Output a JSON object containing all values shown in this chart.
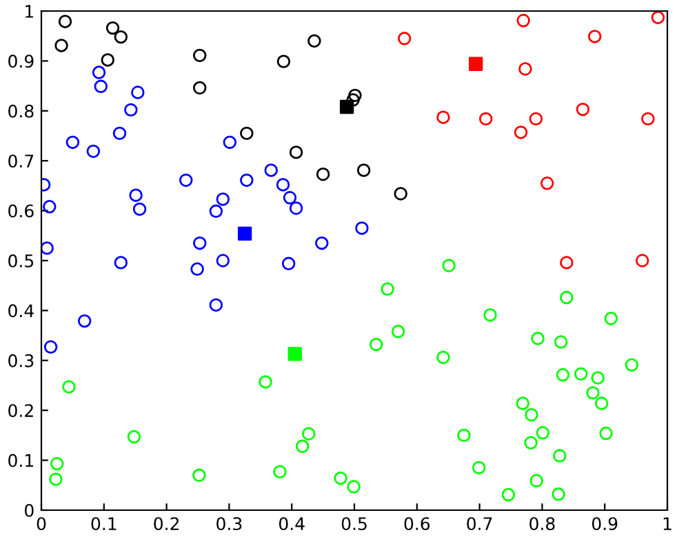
{
  "chart_data": {
    "type": "scatter",
    "xlim": [
      0,
      1
    ],
    "ylim": [
      0,
      1
    ],
    "xticks": [
      0,
      0.1,
      0.2,
      0.3,
      0.4,
      0.5,
      0.6,
      0.7,
      0.8,
      0.9,
      1
    ],
    "yticks": [
      0,
      0.1,
      0.2,
      0.3,
      0.4,
      0.5,
      0.6,
      0.7,
      0.8,
      0.9,
      1
    ],
    "grid": false,
    "series": [
      {
        "color": "#0000ff",
        "marker": "circle",
        "x": [
          0.092,
          0.095,
          0.154,
          0.143,
          0.125,
          0.05,
          0.083,
          0.004,
          0.013,
          0.009,
          0.151,
          0.157,
          0.127,
          0.231,
          0.301,
          0.328,
          0.29,
          0.279,
          0.253,
          0.249,
          0.29,
          0.367,
          0.386,
          0.397,
          0.407,
          0.395,
          0.448,
          0.512,
          0.279,
          0.069,
          0.015
        ],
        "values": [
          0.877,
          0.849,
          0.837,
          0.802,
          0.755,
          0.737,
          0.719,
          0.652,
          0.608,
          0.525,
          0.631,
          0.603,
          0.496,
          0.661,
          0.737,
          0.661,
          0.623,
          0.599,
          0.535,
          0.483,
          0.5,
          0.681,
          0.652,
          0.626,
          0.605,
          0.494,
          0.535,
          0.565,
          0.411,
          0.379,
          0.327
        ]
      },
      {
        "color": "#000000",
        "marker": "circle",
        "x": [
          0.038,
          0.032,
          0.114,
          0.127,
          0.106,
          0.253,
          0.253,
          0.328,
          0.407,
          0.45,
          0.387,
          0.436,
          0.501,
          0.498,
          0.515,
          0.574
        ],
        "values": [
          0.979,
          0.931,
          0.966,
          0.948,
          0.902,
          0.911,
          0.846,
          0.755,
          0.717,
          0.673,
          0.899,
          0.94,
          0.831,
          0.822,
          0.681,
          0.634
        ]
      },
      {
        "color": "#ff0000",
        "marker": "circle",
        "x": [
          0.58,
          0.77,
          0.884,
          0.985,
          0.773,
          0.642,
          0.71,
          0.79,
          0.766,
          0.865,
          0.969,
          0.808,
          0.839,
          0.96
        ],
        "values": [
          0.945,
          0.981,
          0.949,
          0.987,
          0.884,
          0.787,
          0.784,
          0.784,
          0.757,
          0.803,
          0.784,
          0.655,
          0.496,
          0.5
        ]
      },
      {
        "color": "#00ff00",
        "marker": "circle",
        "x": [
          0.044,
          0.148,
          0.025,
          0.023,
          0.252,
          0.358,
          0.381,
          0.417,
          0.427,
          0.478,
          0.499,
          0.651,
          0.553,
          0.57,
          0.535,
          0.642,
          0.717,
          0.839,
          0.91,
          0.793,
          0.83,
          0.943,
          0.833,
          0.862,
          0.889,
          0.881,
          0.895,
          0.769,
          0.783,
          0.801,
          0.782,
          0.902,
          0.675,
          0.828,
          0.699,
          0.791,
          0.746,
          0.826
        ],
        "values": [
          0.247,
          0.147,
          0.093,
          0.062,
          0.07,
          0.257,
          0.077,
          0.128,
          0.153,
          0.064,
          0.047,
          0.49,
          0.443,
          0.358,
          0.332,
          0.306,
          0.391,
          0.426,
          0.384,
          0.344,
          0.337,
          0.291,
          0.271,
          0.273,
          0.265,
          0.235,
          0.214,
          0.214,
          0.191,
          0.155,
          0.135,
          0.154,
          0.15,
          0.109,
          0.085,
          0.059,
          0.031,
          0.032
        ]
      },
      {
        "color": "#0000ff",
        "marker": "square",
        "x": [
          0.325
        ],
        "values": [
          0.554
        ]
      },
      {
        "color": "#000000",
        "marker": "square",
        "x": [
          0.488
        ],
        "values": [
          0.808
        ]
      },
      {
        "color": "#ff0000",
        "marker": "square",
        "x": [
          0.694
        ],
        "values": [
          0.894
        ]
      },
      {
        "color": "#00ff00",
        "marker": "square",
        "x": [
          0.405
        ],
        "values": [
          0.313
        ]
      }
    ]
  }
}
